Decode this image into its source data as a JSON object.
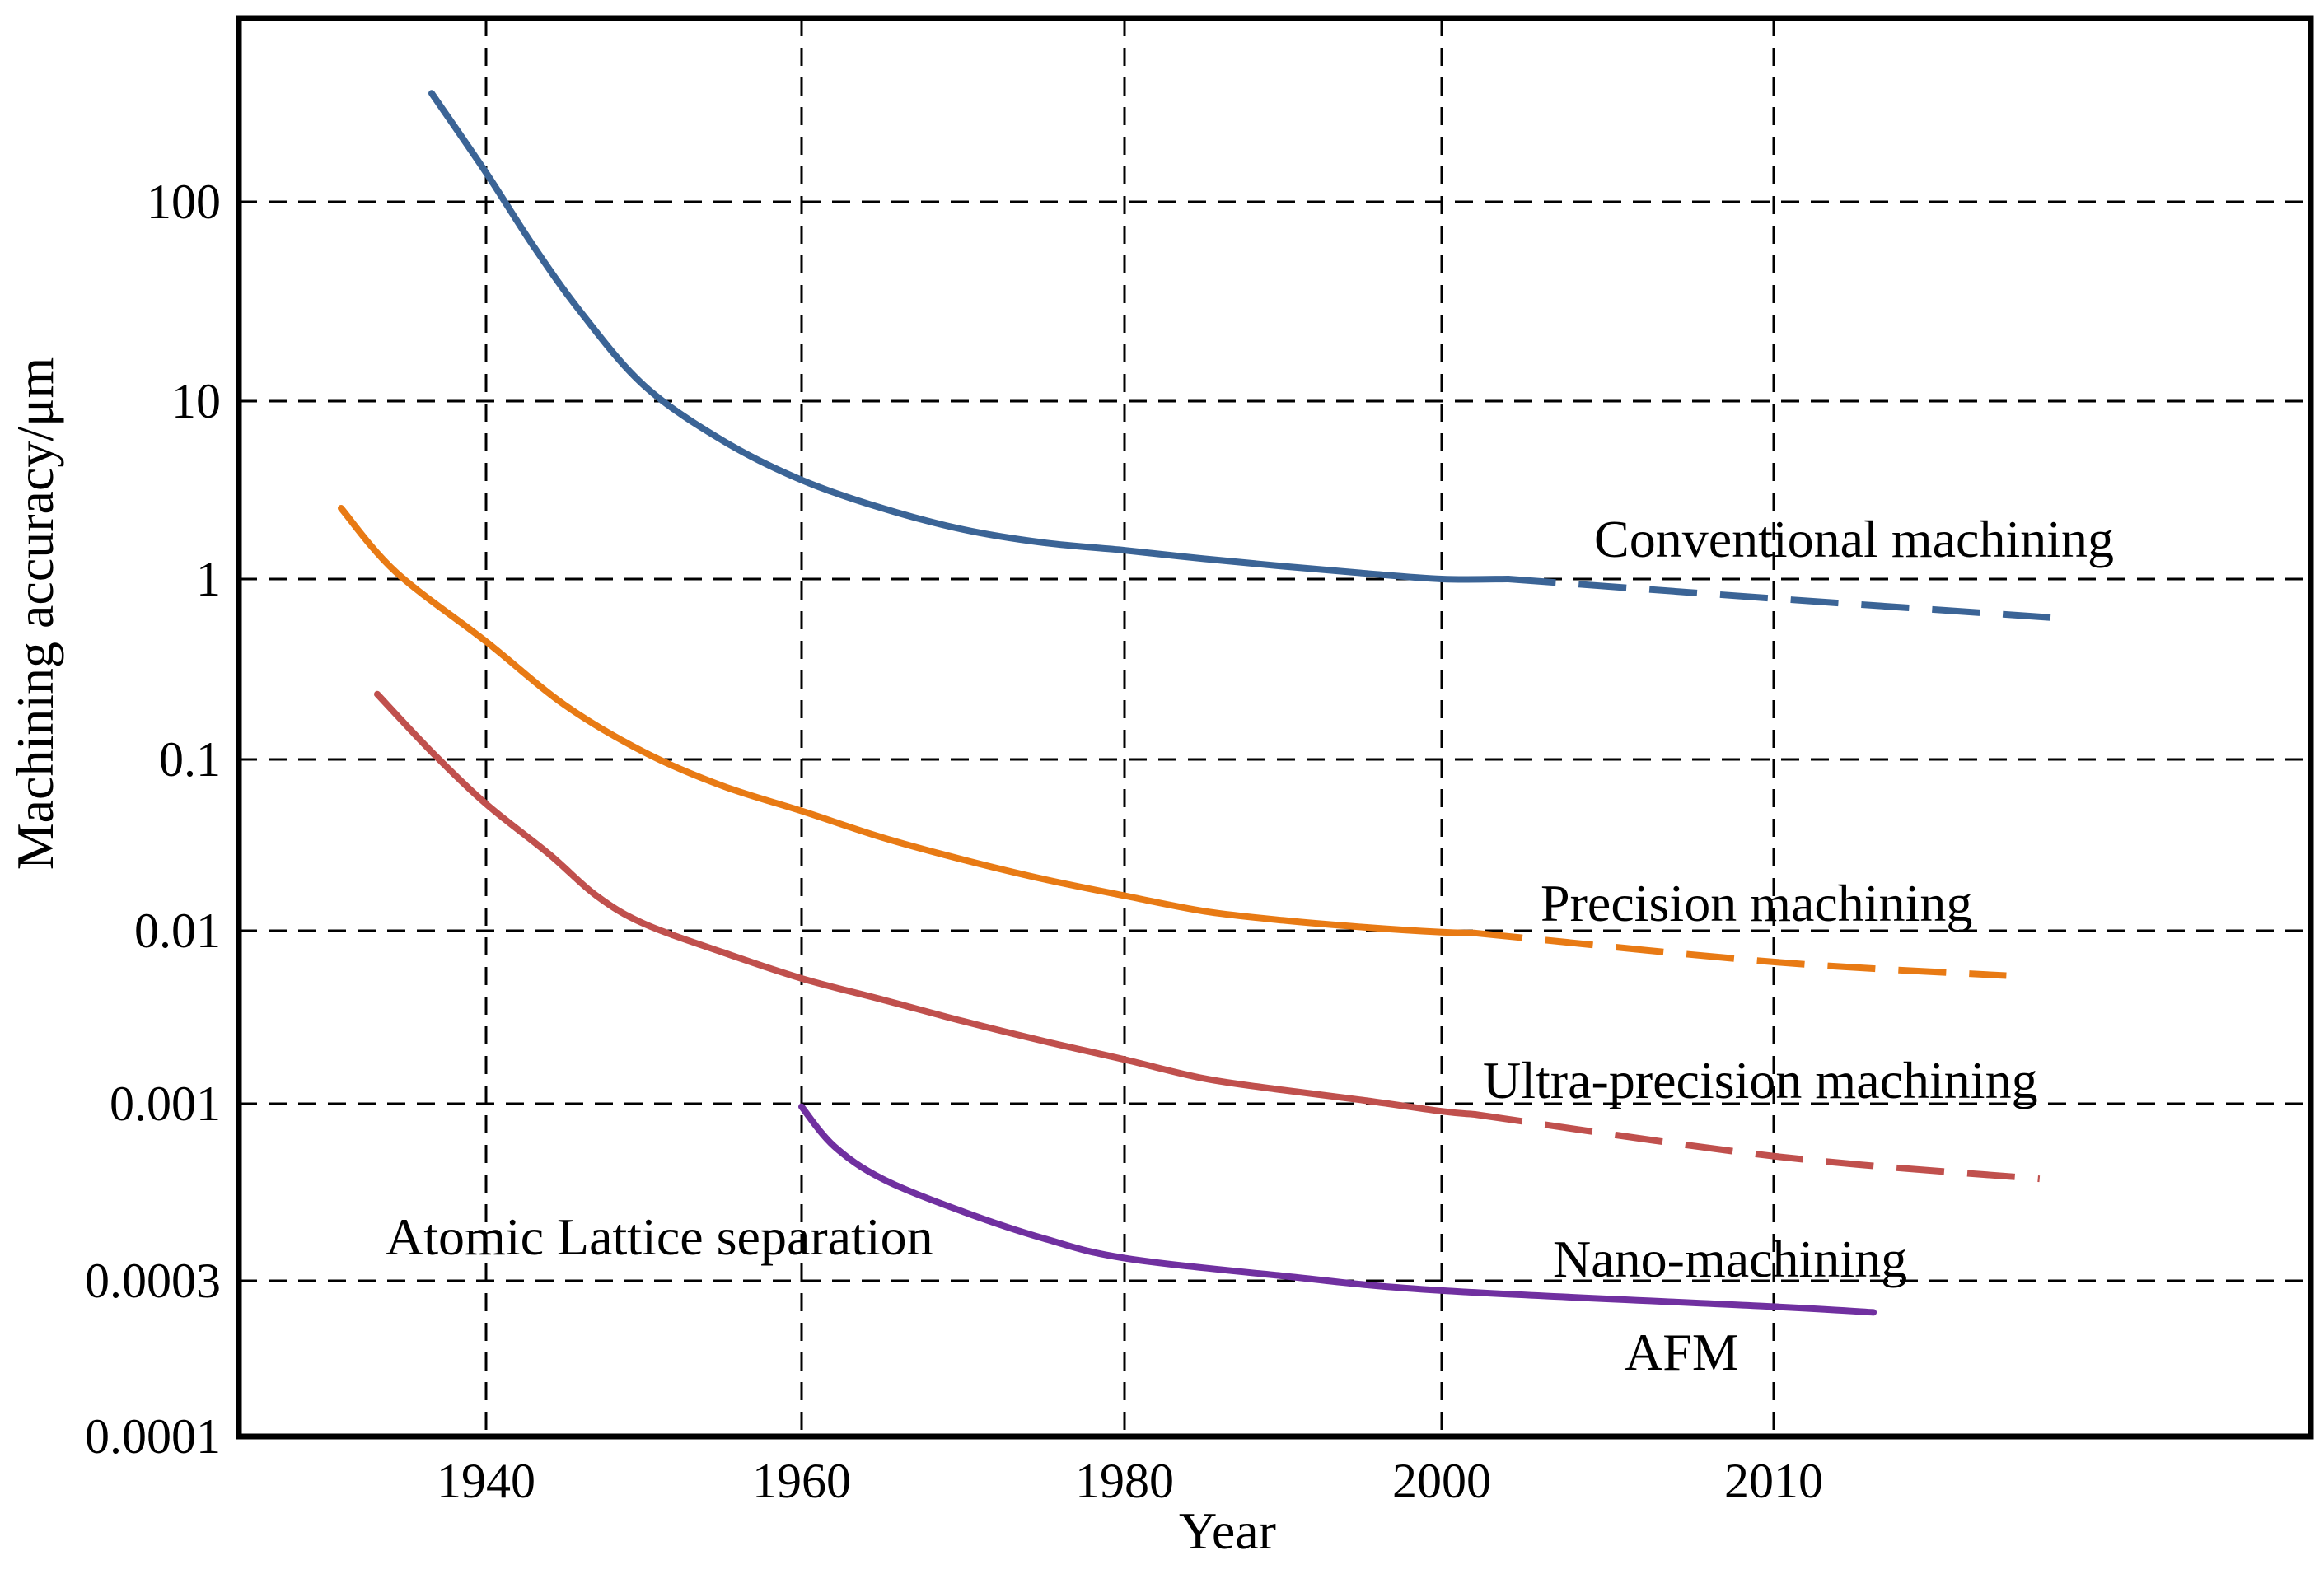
{
  "chart_data": {
    "type": "line",
    "xlabel": "Year",
    "ylabel": "Machining accuracy/μm",
    "yscale": "log",
    "grid": true,
    "x_ticks": [
      1940,
      1960,
      1980,
      2000,
      2010
    ],
    "y_ticks": [
      {
        "value": 100,
        "label": "100"
      },
      {
        "value": 10,
        "label": "10"
      },
      {
        "value": 1,
        "label": "1"
      },
      {
        "value": 0.1,
        "label": "0.1"
      },
      {
        "value": 0.01,
        "label": "0.01"
      },
      {
        "value": 0.001,
        "label": "0.001"
      },
      {
        "value": 0.0003,
        "label": "0.0003"
      },
      {
        "value": 0.0001,
        "label": "0.0001"
      }
    ],
    "series": [
      {
        "name": "Conventional machining",
        "color": "#3b6496",
        "solid": [
          [
            1937,
            350
          ],
          [
            1940,
            140
          ],
          [
            1943,
            60
          ],
          [
            1946,
            28
          ],
          [
            1950,
            12
          ],
          [
            1955,
            6
          ],
          [
            1960,
            3.6
          ],
          [
            1965,
            2.5
          ],
          [
            1970,
            1.9
          ],
          [
            1975,
            1.6
          ],
          [
            1980,
            1.45
          ],
          [
            1985,
            1.3
          ],
          [
            1990,
            1.18
          ],
          [
            1995,
            1.08
          ],
          [
            2000,
            1.0
          ],
          [
            2002,
            1.0
          ]
        ],
        "projected": [
          [
            2002,
            1.0
          ],
          [
            2010,
            0.78
          ],
          [
            2019,
            0.6
          ]
        ]
      },
      {
        "name": "Precision machining",
        "color": "#e87a14",
        "solid": [
          [
            1932,
            2.5
          ],
          [
            1935,
            1.1
          ],
          [
            1940,
            0.45
          ],
          [
            1945,
            0.2
          ],
          [
            1950,
            0.11
          ],
          [
            1955,
            0.07
          ],
          [
            1960,
            0.05
          ],
          [
            1965,
            0.035
          ],
          [
            1970,
            0.026
          ],
          [
            1975,
            0.02
          ],
          [
            1980,
            0.016
          ],
          [
            1985,
            0.013
          ],
          [
            1990,
            0.0115
          ],
          [
            1995,
            0.0105
          ],
          [
            2000,
            0.0098
          ],
          [
            2001,
            0.0097
          ]
        ],
        "projected": [
          [
            2001,
            0.0097
          ],
          [
            2010,
            0.0066
          ],
          [
            2017,
            0.0055
          ]
        ]
      },
      {
        "name": "Ultra-precision machining",
        "color": "#c0504d",
        "solid": [
          [
            1934,
            0.23
          ],
          [
            1937,
            0.11
          ],
          [
            1940,
            0.055
          ],
          [
            1944,
            0.028
          ],
          [
            1947,
            0.016
          ],
          [
            1950,
            0.011
          ],
          [
            1955,
            0.0075
          ],
          [
            1960,
            0.0053
          ],
          [
            1965,
            0.004
          ],
          [
            1970,
            0.003
          ],
          [
            1975,
            0.0023
          ],
          [
            1980,
            0.0018
          ],
          [
            1985,
            0.0014
          ],
          [
            1990,
            0.0012
          ],
          [
            1995,
            0.00105
          ],
          [
            2000,
            0.00095
          ],
          [
            2001,
            0.00093
          ]
        ],
        "projected": [
          [
            2001,
            0.00093
          ],
          [
            2010,
            0.0007
          ],
          [
            2018,
            0.0006
          ]
        ]
      },
      {
        "name": "Nano-machining",
        "color": "#7030a0",
        "solid": [
          [
            1960,
            0.00098
          ],
          [
            1962,
            0.00075
          ],
          [
            1965,
            0.0006
          ],
          [
            1970,
            0.00048
          ],
          [
            1975,
            0.0004
          ],
          [
            1980,
            0.00035
          ],
          [
            1990,
            0.00031
          ],
          [
            2000,
            0.00028
          ],
          [
            2010,
            0.00025
          ],
          [
            2013,
            0.00024
          ]
        ],
        "projected": []
      }
    ],
    "annotations": [
      "Conventional machining",
      "Precision machining",
      "Ultra-precision machining",
      "Nano-machining",
      "AFM",
      "Atomic Lattice separation"
    ]
  }
}
